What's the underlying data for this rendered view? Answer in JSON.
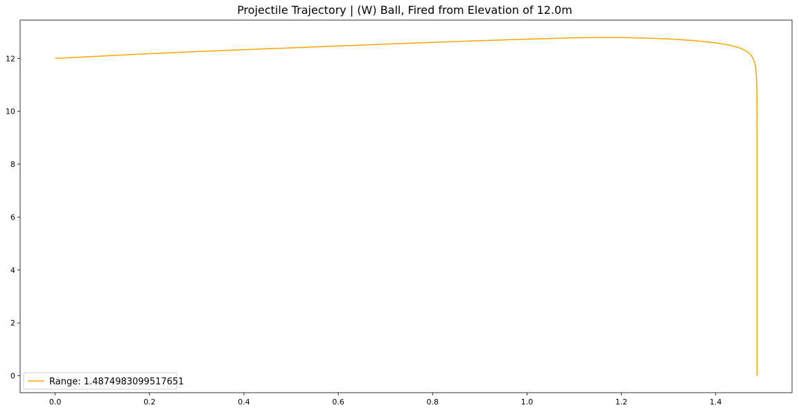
{
  "chart_data": {
    "type": "line",
    "title": "Projectile Trajectory | (W) Ball, Fired from Elevation of 12.0m",
    "xlabel": "",
    "ylabel": "",
    "xlim": [
      -0.0744,
      1.5619
    ],
    "ylim": [
      -0.64,
      13.45
    ],
    "xticks": [
      0.0,
      0.2,
      0.4,
      0.6,
      0.8,
      1.0,
      1.2,
      1.4
    ],
    "xtick_labels": [
      "0.0",
      "0.2",
      "0.4",
      "0.6",
      "0.8",
      "1.0",
      "1.2",
      "1.4"
    ],
    "yticks": [
      0,
      2,
      4,
      6,
      8,
      10,
      12
    ],
    "ytick_labels": [
      "0",
      "2",
      "4",
      "6",
      "8",
      "10",
      "12"
    ],
    "grid": false,
    "legend": {
      "position": "lower-left"
    },
    "colors": {
      "series": "#ffa500"
    },
    "series": [
      {
        "name": "Range: 1.4874983099517651",
        "x": [
          0.0,
          0.1,
          0.2,
          0.3,
          0.4,
          0.5,
          0.6,
          0.7,
          0.8,
          0.9,
          1.0,
          1.1,
          1.15,
          1.2,
          1.25,
          1.3,
          1.35,
          1.4,
          1.43,
          1.45,
          1.46,
          1.47,
          1.475,
          1.48,
          1.483,
          1.485,
          1.486,
          1.4868,
          1.4872,
          1.4874,
          1.4875,
          1.4875,
          1.4875,
          1.4875
        ],
        "y": [
          12.0,
          12.09,
          12.18,
          12.26,
          12.33,
          12.4,
          12.47,
          12.54,
          12.61,
          12.67,
          12.73,
          12.78,
          12.79,
          12.79,
          12.77,
          12.74,
          12.68,
          12.59,
          12.5,
          12.4,
          12.32,
          12.21,
          12.12,
          11.97,
          11.8,
          11.6,
          11.4,
          11.1,
          10.8,
          10.4,
          9.0,
          6.0,
          3.0,
          0.0
        ]
      }
    ]
  }
}
